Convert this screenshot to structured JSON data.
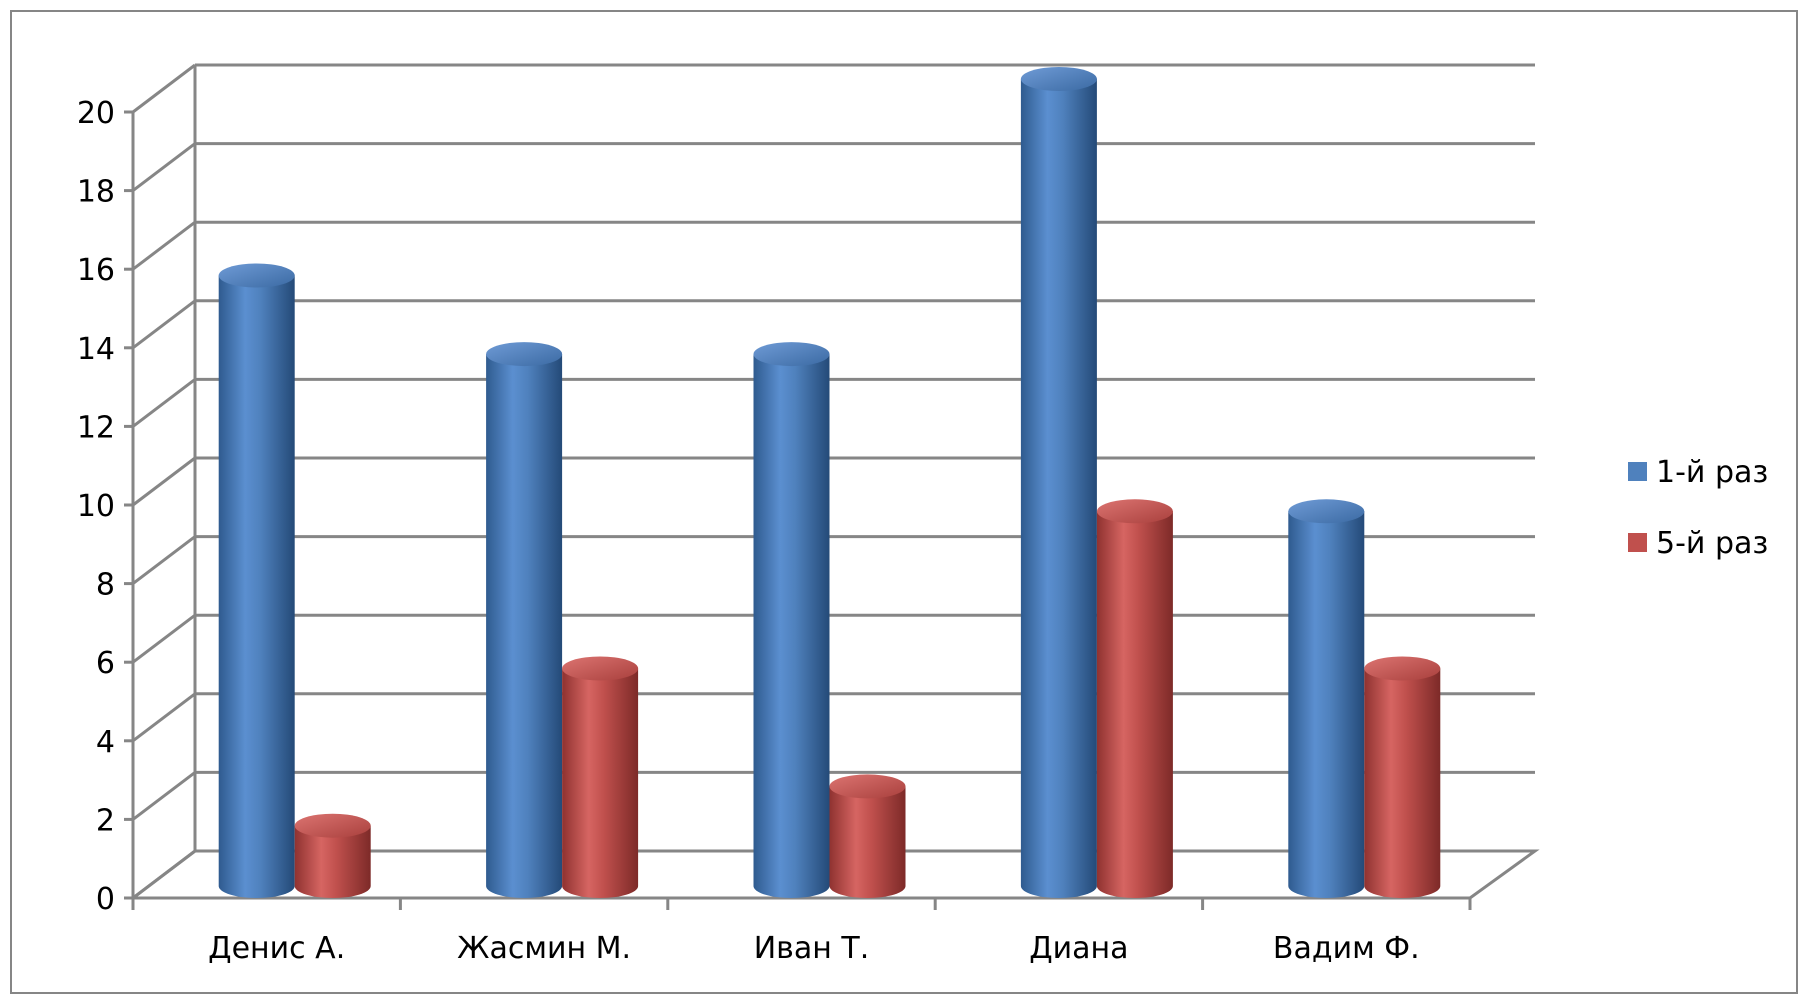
{
  "chart_data": {
    "type": "bar",
    "style": "3d-cylinder",
    "categories": [
      "Денис А.",
      "Жасмин М.",
      "Иван Т.",
      "Диана",
      "Вадим Ф."
    ],
    "series": [
      {
        "name": "1-й раз",
        "color": "#4F81BD",
        "values": [
          15,
          13,
          13,
          20,
          9
        ]
      },
      {
        "name": "5-й раз",
        "color": "#C0504D",
        "values": [
          1,
          5,
          2,
          9,
          5
        ]
      }
    ],
    "ylim": [
      0,
      20
    ],
    "yticks": [
      "0",
      "2",
      "4",
      "6",
      "8",
      "10",
      "12",
      "14",
      "16",
      "18",
      "20"
    ],
    "grid": true,
    "legend_position": "right"
  }
}
